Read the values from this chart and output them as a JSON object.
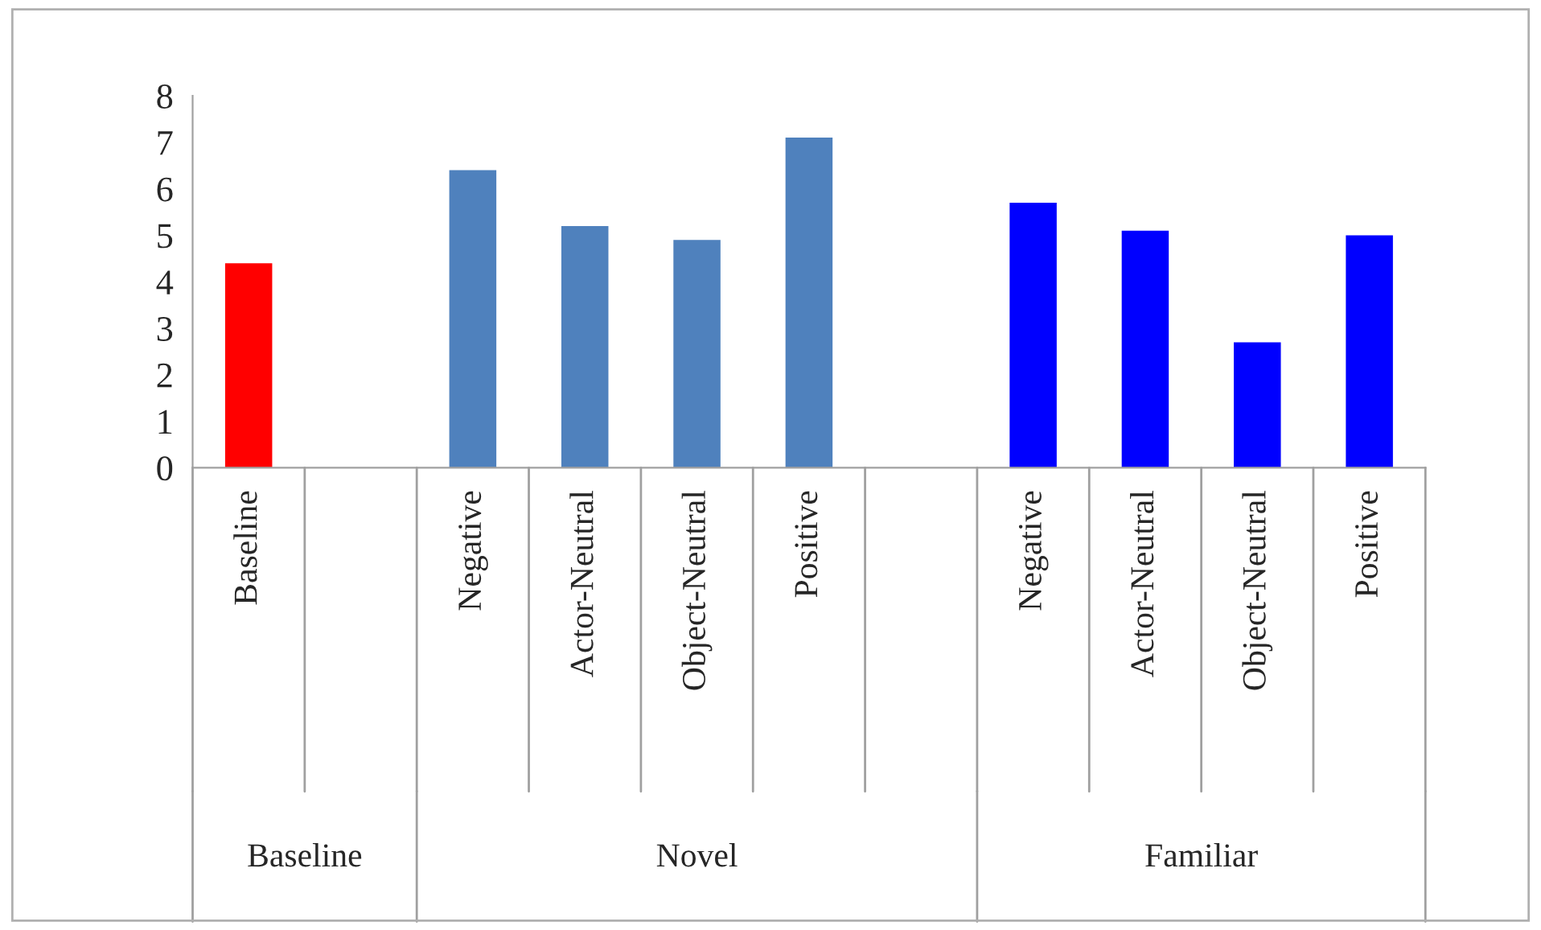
{
  "chart_data": {
    "type": "bar",
    "categories": [
      "Baseline",
      null,
      "Negative",
      "Actor-Neutral",
      "Object-Neutral",
      "Positive",
      null,
      "Negative",
      "Actor-Neutral",
      "Object-Neutral",
      "Positive"
    ],
    "values": [
      4.4,
      null,
      6.4,
      5.2,
      4.9,
      7.1,
      null,
      5.7,
      5.1,
      2.7,
      5.0
    ],
    "colors": [
      "#ff0000",
      null,
      "#4f81bd",
      "#4f81bd",
      "#4f81bd",
      "#4f81bd",
      null,
      "#0000ff",
      "#0000ff",
      "#0000ff",
      "#0000ff"
    ],
    "ylim": [
      0,
      8
    ],
    "yticks": [
      0,
      1,
      2,
      3,
      4,
      5,
      6,
      7,
      8
    ],
    "grid": false,
    "annotations": [
      "Baseline",
      "Novel",
      "Familiar"
    ]
  }
}
